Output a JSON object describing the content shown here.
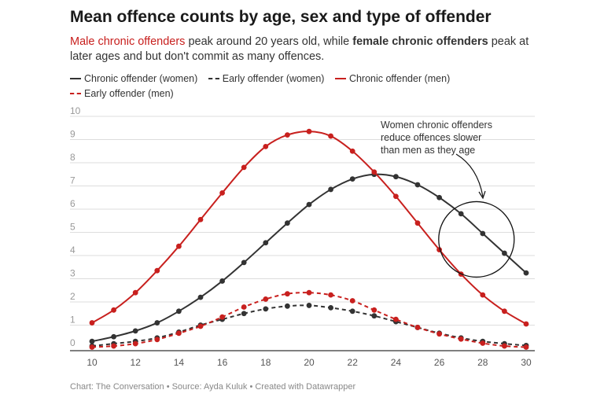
{
  "title": "Mean offence counts by age, sex and type of offender",
  "subtitle": {
    "part1": "Male chronic offenders",
    "part2": " peak around 20 years old, while ",
    "part3": "female chronic offenders",
    "part4": " peak at later ages and but don't commit as many offences."
  },
  "footer": "Chart: The Conversation • Source: Ayda Kuluk • Created with Datawrapper",
  "colors": {
    "women": "#333333",
    "men": "#c8201e",
    "grid": "#dddddd",
    "tick": "#999999"
  },
  "chart_data": {
    "type": "line",
    "title": "Mean offence counts by age, sex and type of offender",
    "xlabel": "",
    "ylabel": "",
    "xlim": [
      10,
      30
    ],
    "ylim": [
      0,
      10
    ],
    "x": [
      10,
      11,
      12,
      13,
      14,
      15,
      16,
      17,
      18,
      19,
      20,
      21,
      22,
      23,
      24,
      25,
      26,
      27,
      28,
      29,
      30
    ],
    "x_ticks": [
      10,
      12,
      14,
      16,
      18,
      20,
      22,
      24,
      26,
      28,
      30
    ],
    "y_ticks": [
      0,
      1,
      2,
      3,
      4,
      5,
      6,
      7,
      8,
      9,
      10
    ],
    "legend_position": "top",
    "series": [
      {
        "name": "Chronic offender (women)",
        "color": "#333333",
        "dash": false,
        "values": [
          0.3,
          0.5,
          0.75,
          1.1,
          1.6,
          2.2,
          2.9,
          3.7,
          4.55,
          5.4,
          6.2,
          6.85,
          7.3,
          7.5,
          7.4,
          7.05,
          6.5,
          5.8,
          4.95,
          4.1,
          3.25
        ]
      },
      {
        "name": "Early offender (women)",
        "color": "#333333",
        "dash": true,
        "values": [
          0.1,
          0.2,
          0.3,
          0.45,
          0.7,
          1.0,
          1.25,
          1.5,
          1.7,
          1.82,
          1.85,
          1.75,
          1.6,
          1.4,
          1.15,
          0.9,
          0.65,
          0.45,
          0.3,
          0.2,
          0.12
        ]
      },
      {
        "name": "Chronic offender (men)",
        "color": "#c8201e",
        "dash": false,
        "values": [
          1.1,
          1.65,
          2.4,
          3.35,
          4.4,
          5.55,
          6.7,
          7.8,
          8.7,
          9.2,
          9.35,
          9.15,
          8.5,
          7.6,
          6.55,
          5.4,
          4.25,
          3.2,
          2.3,
          1.6,
          1.05
        ]
      },
      {
        "name": "Early offender (men)",
        "color": "#c8201e",
        "dash": true,
        "values": [
          0.05,
          0.1,
          0.2,
          0.38,
          0.65,
          0.95,
          1.35,
          1.78,
          2.12,
          2.35,
          2.4,
          2.3,
          2.05,
          1.65,
          1.25,
          0.9,
          0.62,
          0.4,
          0.22,
          0.1,
          0.05
        ]
      }
    ],
    "annotation": {
      "text_lines": [
        "Women chronic offenders",
        "reduce offences slower",
        "than men as they age"
      ],
      "target_x": 28,
      "target_y": 4.9
    }
  }
}
